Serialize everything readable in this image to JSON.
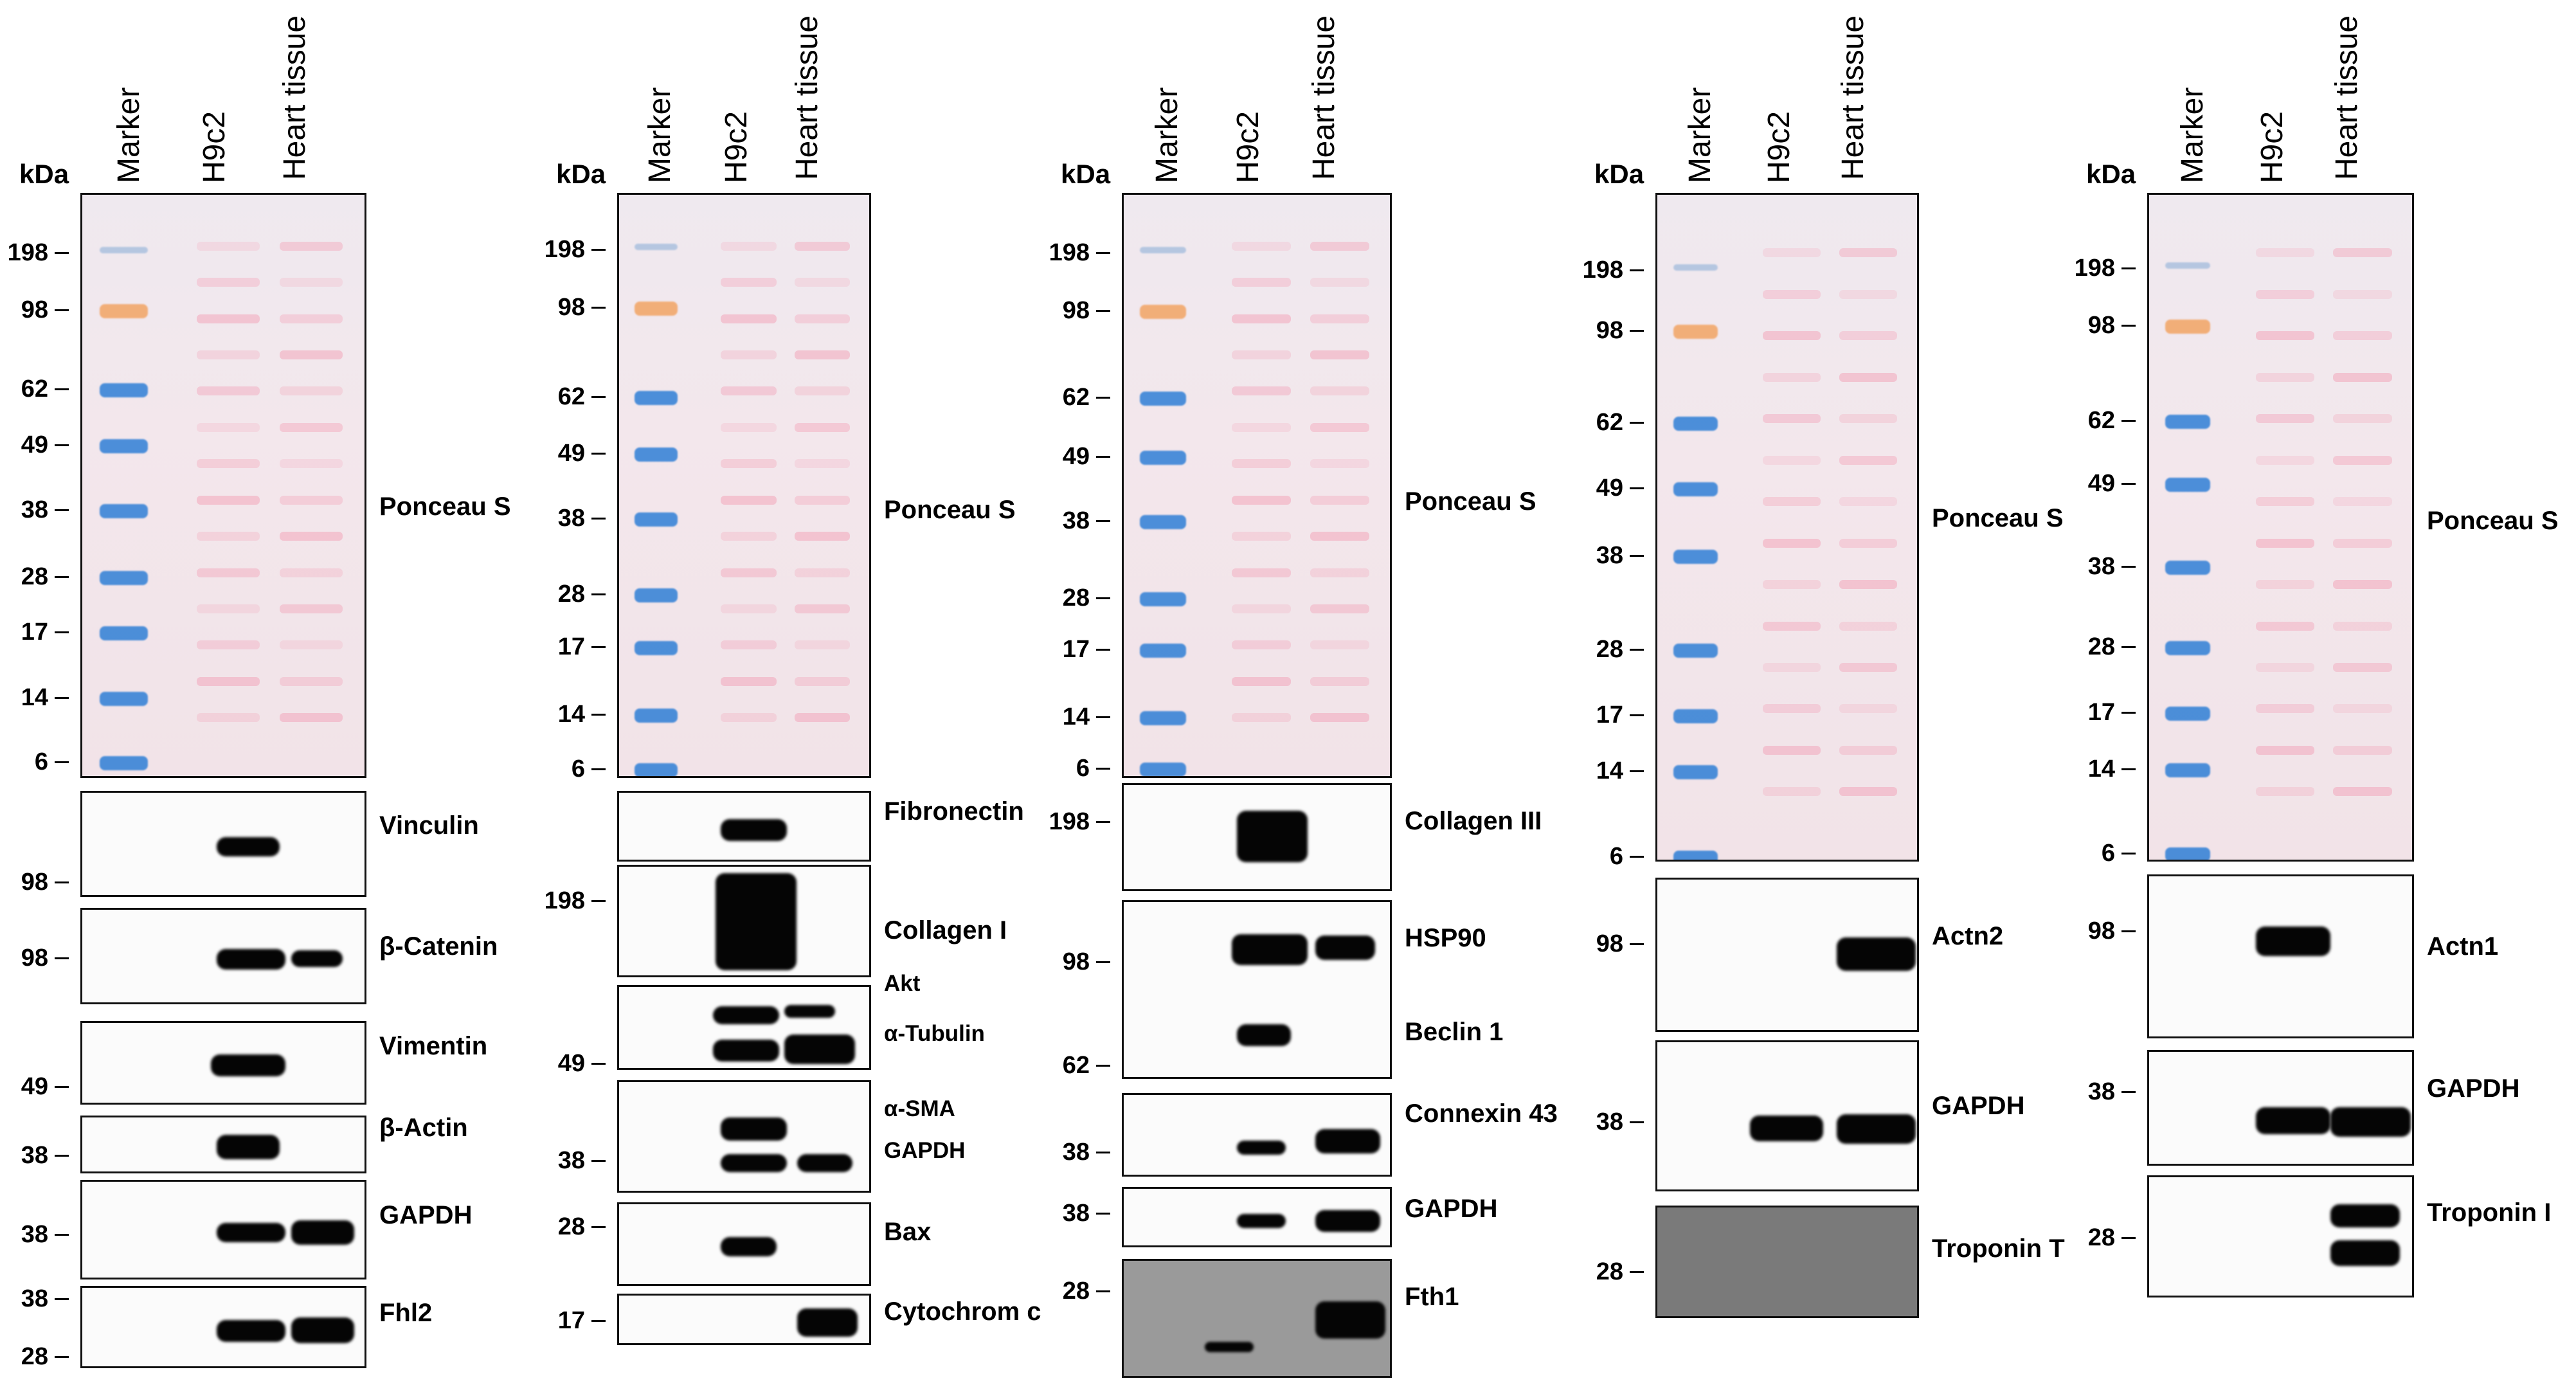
{
  "lane_labels": [
    "Marker",
    "H9c2",
    "Heart tissue"
  ],
  "kda_label": "kDa",
  "colors": {
    "ponceau_bg": "#f1e6ea",
    "ponceau_band": "#f2a9bd",
    "ladder_blue": "#2f7fd6",
    "ladder_orange": "#f2a464",
    "band": "#050505"
  },
  "panels": [
    {
      "ponceau": {
        "label": "Ponceau S",
        "ticks": [
          "198",
          "98",
          "62",
          "49",
          "38",
          "28",
          "17",
          "14",
          "6"
        ]
      },
      "blots": [
        {
          "label": "Vinculin",
          "ticks": [
            "98"
          ]
        },
        {
          "label": "β-Catenin",
          "ticks": [
            "98"
          ]
        },
        {
          "label": "Vimentin",
          "ticks": [
            "49"
          ]
        },
        {
          "label": "β-Actin",
          "ticks": [
            "38"
          ]
        },
        {
          "label": "GAPDH",
          "ticks": [
            "38"
          ]
        },
        {
          "label": "Fhl2",
          "ticks": [
            "38",
            "28"
          ]
        }
      ]
    },
    {
      "ponceau": {
        "label": "Ponceau S",
        "ticks": [
          "198",
          "98",
          "62",
          "49",
          "38",
          "28",
          "17",
          "14",
          "6"
        ]
      },
      "blots": [
        {
          "label": "Fibronectin",
          "ticks": []
        },
        {
          "label": "Collagen I",
          "ticks": [
            "198"
          ]
        },
        {
          "labels": [
            "Akt",
            "α-Tubulin"
          ],
          "ticks": [
            "49"
          ]
        },
        {
          "labels": [
            "α-SMA",
            "GAPDH"
          ],
          "ticks": [
            "38"
          ]
        },
        {
          "label": "Bax",
          "ticks": [
            "28"
          ]
        },
        {
          "label": "Cytochrom c",
          "ticks": [
            "17"
          ]
        }
      ]
    },
    {
      "ponceau": {
        "label": "Ponceau S",
        "ticks": [
          "198",
          "98",
          "62",
          "49",
          "38",
          "28",
          "17",
          "14",
          "6"
        ]
      },
      "blots": [
        {
          "label": "Collagen III",
          "ticks": [
            "198"
          ]
        },
        {
          "labels": [
            "HSP90",
            "Beclin 1"
          ],
          "ticks": [
            "98",
            "62"
          ]
        },
        {
          "label": "Connexin 43",
          "ticks": [
            "38"
          ]
        },
        {
          "label": "GAPDH",
          "ticks": [
            "38"
          ]
        },
        {
          "label": "Fth1",
          "ticks": [
            "28"
          ]
        }
      ]
    },
    {
      "ponceau": {
        "label": "Ponceau S",
        "ticks": [
          "198",
          "98",
          "62",
          "49",
          "38",
          "28",
          "17",
          "14",
          "6"
        ]
      },
      "blots": [
        {
          "label": "Actn2",
          "ticks": [
            "98"
          ]
        },
        {
          "label": "GAPDH",
          "ticks": [
            "38"
          ]
        },
        {
          "label": "Troponin T",
          "ticks": [
            "28"
          ]
        }
      ]
    },
    {
      "ponceau": {
        "label": "Ponceau S",
        "ticks": [
          "198",
          "98",
          "62",
          "49",
          "38",
          "28",
          "17",
          "14",
          "6"
        ]
      },
      "blots": [
        {
          "label": "Actn1",
          "ticks": [
            "98"
          ]
        },
        {
          "label": "GAPDH",
          "ticks": [
            "38"
          ]
        },
        {
          "label": "Troponin I",
          "ticks": [
            "28"
          ]
        }
      ]
    }
  ]
}
